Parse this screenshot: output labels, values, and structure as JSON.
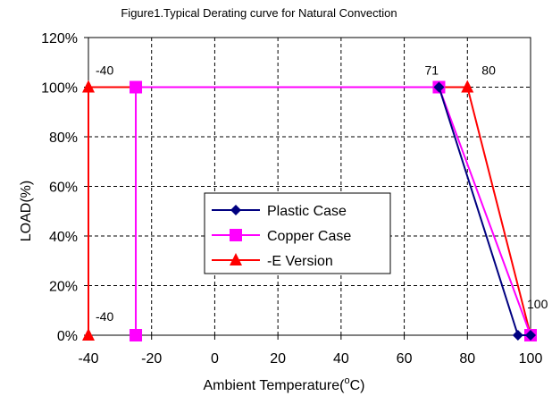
{
  "chart_data": {
    "type": "line",
    "title": "Figure1.Typical Derating curve for Natural Convection",
    "xlabel": "Ambient Temperature(",
    "xlabel_unit": "C)",
    "ylabel": "LOAD(%)",
    "xlim": [
      -40,
      100
    ],
    "ylim": [
      0,
      120
    ],
    "x_ticks": [
      -40,
      -20,
      0,
      20,
      40,
      60,
      80,
      100
    ],
    "y_ticks": [
      0,
      20,
      40,
      60,
      80,
      100,
      120
    ],
    "x_tick_labels": [
      "-40",
      "-20",
      "0",
      "20",
      "40",
      "60",
      "80",
      "100"
    ],
    "y_tick_labels": [
      "0%",
      "20%",
      "40%",
      "60%",
      "80%",
      "100%",
      "120%"
    ],
    "grid": true,
    "legend_position": "center",
    "series": [
      {
        "name": "Plastic Case",
        "color": "#000080",
        "marker": "diamond",
        "x": [
          71,
          96,
          100
        ],
        "y": [
          100,
          0,
          0
        ]
      },
      {
        "name": "Copper Case",
        "color": "#ff00ff",
        "marker": "square",
        "x": [
          -25,
          -25,
          71,
          100
        ],
        "y": [
          0,
          100,
          100,
          0
        ]
      },
      {
        "name": "-E Version",
        "color": "#ff0000",
        "marker": "triangle",
        "x": [
          -40,
          -40,
          80,
          100
        ],
        "y": [
          0,
          100,
          100,
          0
        ]
      }
    ],
    "annotations": [
      {
        "text": "-40",
        "x": -40,
        "y": 100
      },
      {
        "text": "-40",
        "x": -40,
        "y": 0
      },
      {
        "text": "71",
        "x": 71,
        "y": 100
      },
      {
        "text": "80",
        "x": 80,
        "y": 100
      },
      {
        "text": "100",
        "x": 100,
        "y": 0
      }
    ]
  }
}
